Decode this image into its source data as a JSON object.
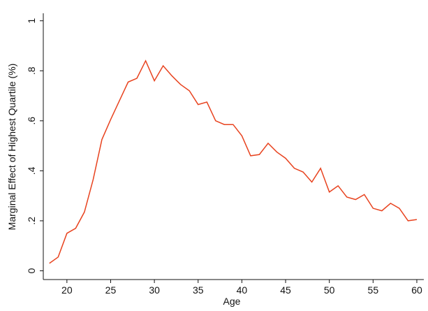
{
  "chart_data": {
    "type": "line",
    "x_label": "Age",
    "y_label": "Marginal Effect of Highest Quartile (%)",
    "x": [
      18,
      19,
      20,
      21,
      22,
      23,
      24,
      25,
      26,
      27,
      28,
      29,
      30,
      31,
      32,
      33,
      34,
      35,
      36,
      37,
      38,
      39,
      40,
      41,
      42,
      43,
      44,
      45,
      46,
      47,
      48,
      49,
      50,
      51,
      52,
      53,
      54,
      55,
      56,
      57,
      58,
      59,
      60
    ],
    "series": [
      {
        "color": "#e8431f",
        "values": [
          0.03,
          0.055,
          0.15,
          0.17,
          0.235,
          0.365,
          0.525,
          0.605,
          0.68,
          0.755,
          0.77,
          0.84,
          0.76,
          0.82,
          0.78,
          0.745,
          0.72,
          0.665,
          0.675,
          0.6,
          0.585,
          0.585,
          0.54,
          0.46,
          0.465,
          0.51,
          0.475,
          0.45,
          0.41,
          0.395,
          0.355,
          0.41,
          0.315,
          0.34,
          0.295,
          0.285,
          0.305,
          0.25,
          0.24,
          0.27,
          0.25,
          0.2,
          0.205
        ]
      }
    ],
    "xlim": [
      17.3,
      60.8
    ],
    "xticks": [
      20,
      25,
      30,
      35,
      40,
      45,
      50,
      55,
      60
    ],
    "ylim": [
      -0.035,
      1.03
    ],
    "yticks": [
      0,
      {
        "value": 0.2,
        "label": ".2"
      },
      {
        "value": 0.4,
        "label": ".4"
      },
      {
        "value": 0.6,
        "label": ".6"
      },
      {
        "value": 0.8,
        "label": ".8"
      },
      1
    ]
  }
}
